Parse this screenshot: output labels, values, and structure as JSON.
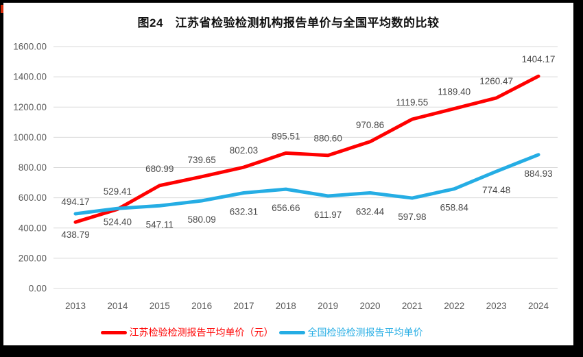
{
  "title": "图24　江苏省检验检测机构报告单价与全国平均数的比较",
  "chart_data": {
    "type": "line",
    "title": "图24　江苏省检验检测机构报告单价与全国平均数的比较",
    "categories": [
      "2013",
      "2014",
      "2015",
      "2016",
      "2017",
      "2018",
      "2019",
      "2020",
      "2021",
      "2022",
      "2023",
      "2024"
    ],
    "series": [
      {
        "name": "江苏检验检测报告平均单价（元）",
        "color": "#ff0000",
        "values": [
          438.79,
          524.4,
          680.99,
          739.65,
          802.03,
          895.51,
          880.6,
          970.86,
          1119.55,
          1189.4,
          1260.47,
          1404.17
        ]
      },
      {
        "name": "全国检验检测报告平均单价",
        "color": "#25ade4",
        "values": [
          494.17,
          529.41,
          547.11,
          580.09,
          632.31,
          656.66,
          611.97,
          632.44,
          597.98,
          658.84,
          774.48,
          884.93
        ]
      }
    ],
    "ylim": [
      0,
      1600
    ],
    "yticks": [
      0,
      200,
      400,
      600,
      800,
      1000,
      1200,
      1400,
      1600
    ],
    "ytick_decimals": 2,
    "data_label_decimals": 2,
    "grid": true,
    "legend_position": "bottom",
    "data_labels": true
  },
  "colors": {
    "frame": "#000000",
    "page_background": "#ffffff",
    "gridline": "#d9d9d9",
    "axis_text": "#595959",
    "data_label_text": "#4a4a4a",
    "corner_mark": "#d42a08"
  }
}
